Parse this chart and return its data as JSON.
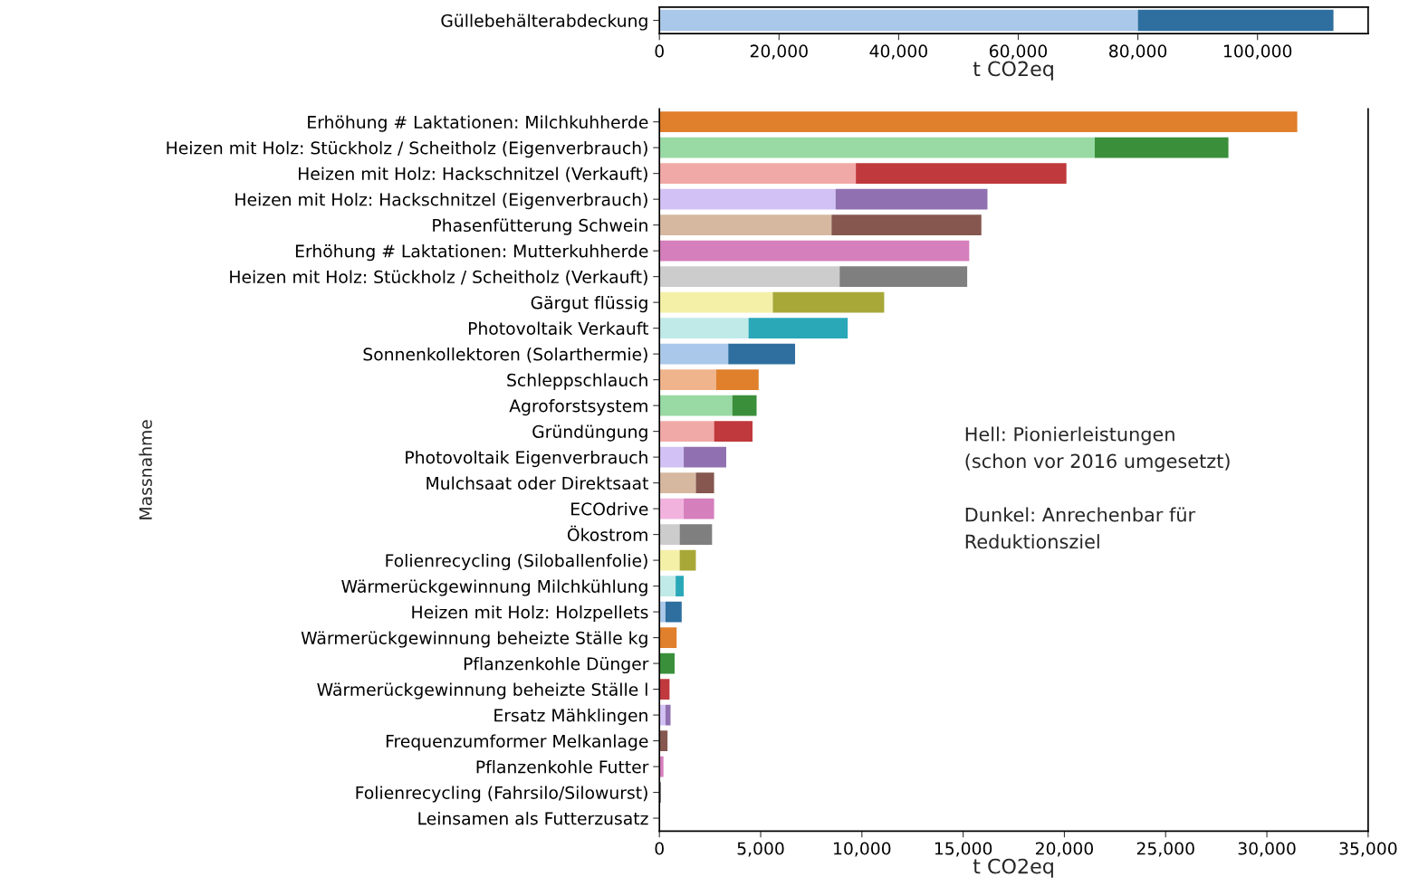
{
  "chart_data": [
    {
      "type": "bar",
      "orientation": "horizontal",
      "stacked": true,
      "categories": [
        "Güllebehälterabdeckung"
      ],
      "xlabel": "t CO2eq",
      "series": [
        {
          "colors": [
            "#a9c8ea"
          ],
          "values": [
            80000
          ]
        },
        {
          "colors": [
            "#2e6f9f"
          ],
          "values": [
            32700
          ]
        }
      ],
      "xlim": [
        0,
        118500
      ],
      "xticks": [
        0,
        {
          "value": 20000,
          "label": "20,000"
        },
        {
          "value": 40000,
          "label": "40,000"
        },
        {
          "value": 60000,
          "label": "60,000"
        },
        {
          "value": 80000,
          "label": "80,000"
        },
        {
          "value": 100000,
          "label": "100,000"
        }
      ],
      "grid": false,
      "legend": false
    },
    {
      "type": "bar",
      "orientation": "horizontal",
      "stacked": true,
      "xlabel": "t CO2eq",
      "ylabel": "Massnahme",
      "categories": [
        "Erhöhung # Laktationen: Milchkuhherde",
        "Heizen mit Holz: Stückholz / Scheitholz (Eigenverbrauch)",
        "Heizen mit Holz: Hackschnitzel (Verkauft)",
        "Heizen mit Holz: Hackschnitzel (Eigenverbrauch)",
        "Phasenfütterung Schwein",
        "Erhöhung # Laktationen: Mutterkuhherde",
        "Heizen mit Holz: Stückholz / Scheitholz (Verkauft)",
        "Gärgut flüssig",
        "Photovoltaik Verkauft",
        "Sonnenkollektoren (Solarthermie)",
        "Schleppschlauch",
        "Agroforstsystem",
        "Gründüngung",
        "Photovoltaik Eigenverbrauch",
        "Mulchsaat oder Direktsaat",
        "ECOdrive",
        "Ökostrom",
        "Folienrecycling (Siloballenfolie)",
        "Wärmerückgewinnung Milchkühlung",
        "Heizen mit Holz: Holzpellets",
        "Wärmerückgewinnung beheizte Ställe kg",
        "Pflanzenkohle Dünger",
        "Wärmerückgewinnung beheizte Ställe l",
        "Ersatz Mähklingen",
        "Frequenzumformer Melkanlage",
        "Pflanzenkohle Futter",
        "Folienrecycling (Fahrsilo/Silowurst)",
        "Leinsamen als Futterzusatz"
      ],
      "series": [
        {
          "colors": [
            "#f0b48c",
            "#98d9a4",
            "#f1a9a7",
            "#d1c1f5",
            "#d5b89f",
            "#f1b3dd",
            "#cccccc",
            "#f4f0a8",
            "#c0eae8",
            "#a9c8ea",
            "#f0b48c",
            "#98d9a4",
            "#f1a9a7",
            "#d1c1f5",
            "#d5b89f",
            "#f1b3dd",
            "#cccccc",
            "#f4f0a8",
            "#c0eae8",
            "#a9c8ea",
            "#f0b48c",
            "#98d9a4",
            "#f1a9a7",
            "#d1c1f5",
            "#d5b89f",
            "#f1b3dd",
            "#cccccc",
            "#f4f0a8"
          ],
          "values": [
            null,
            21500,
            9700,
            8700,
            8500,
            null,
            8900,
            5600,
            4400,
            3400,
            2800,
            3600,
            2700,
            1200,
            1800,
            1200,
            1000,
            1000,
            800,
            300,
            null,
            null,
            null,
            300,
            null,
            null,
            null,
            null
          ]
        },
        {
          "colors": [
            "#e07f2c",
            "#3a8f3a",
            "#c0393c",
            "#9070b0",
            "#85574f",
            "#d57fbd",
            "#7f7f7f",
            "#a8a838",
            "#2aa8b8",
            "#2e6f9f",
            "#e07f2c",
            "#3a8f3a",
            "#c0393c",
            "#9070b0",
            "#85574f",
            "#d57fbd",
            "#7f7f7f",
            "#a8a838",
            "#2aa8b8",
            "#2e6f9f",
            "#e07f2c",
            "#3a8f3a",
            "#c0393c",
            "#9070b0",
            "#85574f",
            "#d57fbd",
            "#7f7f7f",
            "#a8a838"
          ],
          "values": [
            31500,
            6600,
            10400,
            7500,
            7400,
            15300,
            6300,
            5500,
            4900,
            3300,
            2100,
            1200,
            1900,
            2100,
            900,
            1500,
            1600,
            800,
            400,
            800,
            850,
            750,
            500,
            250,
            400,
            200,
            80,
            0
          ]
        }
      ],
      "xlim": [
        0,
        35000
      ],
      "xticks": [
        0,
        {
          "value": 5000,
          "label": "5,000"
        },
        {
          "value": 10000,
          "label": "10,000"
        },
        {
          "value": 15000,
          "label": "15,000"
        },
        {
          "value": 20000,
          "label": "20,000"
        },
        {
          "value": 25000,
          "label": "25,000"
        },
        {
          "value": 30000,
          "label": "30,000"
        },
        {
          "value": 35000,
          "label": "35,000"
        }
      ],
      "annotations": [
        "Hell: Pionierleistungen\n(schon vor 2016 umgesetzt)\n\nDunkel: Anrechenbar für\nReduktionsziel"
      ],
      "grid": false,
      "legend": false
    }
  ]
}
